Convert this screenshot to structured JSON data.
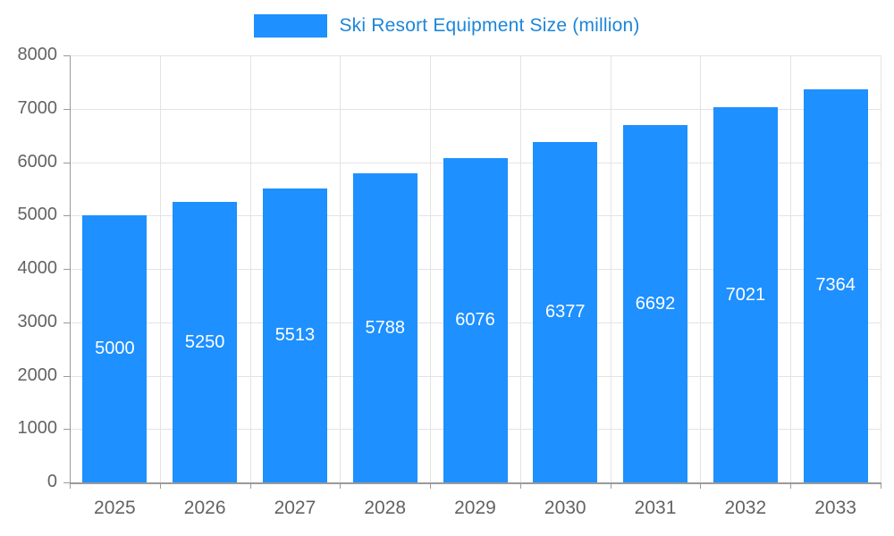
{
  "chart_data": {
    "type": "bar",
    "title": "Ski Resort Equipment Size (million)",
    "legend_entries": [
      "Ski Resort Equipment Size (million)"
    ],
    "legend_position": "top",
    "categories": [
      "2025",
      "2026",
      "2027",
      "2028",
      "2029",
      "2030",
      "2031",
      "2032",
      "2033"
    ],
    "values": [
      5000,
      5250,
      5513,
      5788,
      6076,
      6377,
      6692,
      7021,
      7364
    ],
    "xlabel": "",
    "ylabel": "",
    "ylim": [
      0,
      8000
    ],
    "y_ticks": [
      0,
      1000,
      2000,
      3000,
      4000,
      5000,
      6000,
      7000,
      8000
    ],
    "grid": true,
    "bar_value_labels_visible": true,
    "colors": {
      "bar": "#1e90ff",
      "bar_label": "#ffffff",
      "legend_text": "#1d86d8",
      "axis_text": "#636363",
      "gridline": "#e3e3e3",
      "axis_line": "#9a9a9a",
      "background": "#ffffff"
    }
  }
}
